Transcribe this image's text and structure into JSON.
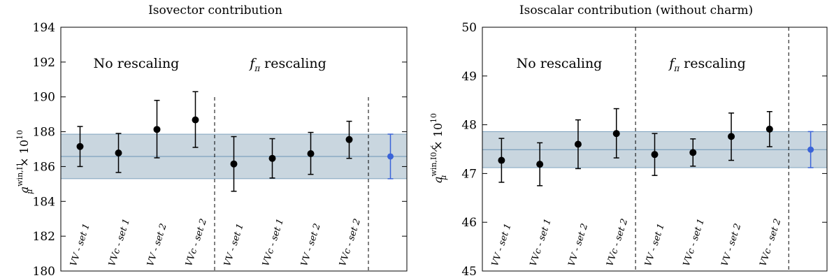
{
  "colors": {
    "band": "#c9d6df",
    "band_line": "#6a94b5",
    "point": "#000000",
    "average": "#3a63d8"
  },
  "chart_data": [
    {
      "type": "scatter",
      "title": "Isovector contribution",
      "ylabel": "a_μ^{win,I1} × 10^{10}",
      "ylabel_main": "a",
      "ylabel_sub": "μ",
      "ylabel_sup": "win,I1",
      "ylabel_tail": "× 10",
      "ylabel_exp": "10",
      "ylim": [
        180,
        194
      ],
      "yticks": [
        180,
        182,
        184,
        186,
        188,
        190,
        192,
        194
      ],
      "categories": [
        "VV - set 1",
        "VVc - set 1",
        "VV - set 2",
        "VVc - set 2",
        "VV - set 1",
        "VVc - set 1",
        "VV - set 2",
        "VVc - set 2",
        ""
      ],
      "regions": [
        {
          "label": "No rescaling"
        },
        {
          "label_main": "f",
          "label_sub": "π",
          "label_tail": " rescaling"
        }
      ],
      "series": [
        {
          "values": [
            187.15,
            186.78,
            188.13,
            188.68,
            186.15,
            186.47,
            186.74,
            187.55
          ],
          "err_low": [
            1.15,
            1.12,
            1.63,
            1.58,
            1.57,
            1.13,
            1.19,
            1.08
          ],
          "err_high": [
            1.15,
            1.12,
            1.67,
            1.62,
            1.57,
            1.13,
            1.22,
            1.05
          ]
        }
      ],
      "average": {
        "value": 186.58,
        "err": 1.28
      }
    },
    {
      "type": "scatter",
      "title": "Isoscalar contribution (without charm)",
      "ylabel": "a_μ^{win,I0,c̸} × 10^{10}",
      "ylabel_main": "a",
      "ylabel_sub": "μ",
      "ylabel_sup": "win,I0,c̸",
      "ylabel_tail": "× 10",
      "ylabel_exp": "10",
      "ylim": [
        45,
        50
      ],
      "yticks": [
        45,
        46,
        47,
        48,
        49,
        50
      ],
      "categories": [
        "VV - set 1",
        "VVc - set 1",
        "VV - set 2",
        "VVc - set 2",
        "VV - set 1",
        "VVc - set 1",
        "VV - set 2",
        "VVc - set 2",
        ""
      ],
      "regions": [
        {
          "label": "No rescaling"
        },
        {
          "label_main": "f",
          "label_sub": "π",
          "label_tail": " rescaling"
        }
      ],
      "series": [
        {
          "values": [
            47.27,
            47.19,
            47.6,
            47.82,
            47.39,
            47.43,
            47.76,
            47.91
          ],
          "err_low": [
            0.45,
            0.44,
            0.5,
            0.5,
            0.43,
            0.28,
            0.49,
            0.36
          ],
          "err_high": [
            0.45,
            0.44,
            0.5,
            0.51,
            0.43,
            0.28,
            0.48,
            0.36
          ]
        }
      ],
      "average": {
        "value": 47.49,
        "err": 0.37
      }
    }
  ]
}
